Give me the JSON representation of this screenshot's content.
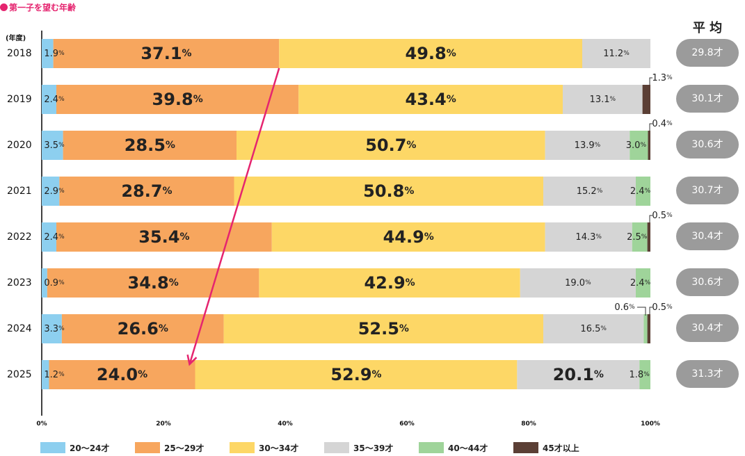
{
  "chart_data": {
    "type": "bar",
    "orientation": "horizontal-stacked",
    "title": "第一子を望む年齢",
    "ylabel": "(年度)",
    "avg_header": "平 均",
    "xlim": [
      0,
      100
    ],
    "x_ticks": [
      "0%",
      "20%",
      "40%",
      "60%",
      "80%",
      "100%"
    ],
    "categories": [
      "2018",
      "2019",
      "2020",
      "2021",
      "2022",
      "2023",
      "2024",
      "2025"
    ],
    "series": [
      {
        "name": "20〜24才",
        "color": "#8dcfef",
        "values": [
          1.9,
          2.4,
          3.5,
          2.9,
          2.4,
          0.9,
          3.3,
          1.2
        ]
      },
      {
        "name": "25〜29才",
        "color": "#f7a65e",
        "values": [
          37.1,
          39.8,
          28.5,
          28.7,
          35.4,
          34.8,
          26.6,
          24.0
        ]
      },
      {
        "name": "30〜34才",
        "color": "#fdd766",
        "values": [
          49.8,
          43.4,
          50.7,
          50.8,
          44.9,
          42.9,
          52.5,
          52.9
        ]
      },
      {
        "name": "35〜39才",
        "color": "#d5d5d5",
        "values": [
          11.2,
          13.1,
          13.9,
          15.2,
          14.3,
          19.0,
          16.5,
          20.1
        ]
      },
      {
        "name": "40〜44才",
        "color": "#9fd49a",
        "values": [
          0,
          0,
          3.0,
          2.4,
          2.5,
          2.4,
          0.6,
          1.8
        ]
      },
      {
        "name": "45才以上",
        "color": "#5b3f35",
        "values": [
          0,
          1.3,
          0.4,
          0,
          0.5,
          0,
          0.5,
          0
        ]
      }
    ],
    "averages": [
      "29.8才",
      "30.1才",
      "30.6才",
      "30.7才",
      "30.4才",
      "30.6才",
      "30.4才",
      "31.3才"
    ],
    "annotation": "arrow from the 2018 25〜29才 boundary down to the 2025 25〜29才 boundary",
    "accent_color": "#e5246f"
  }
}
